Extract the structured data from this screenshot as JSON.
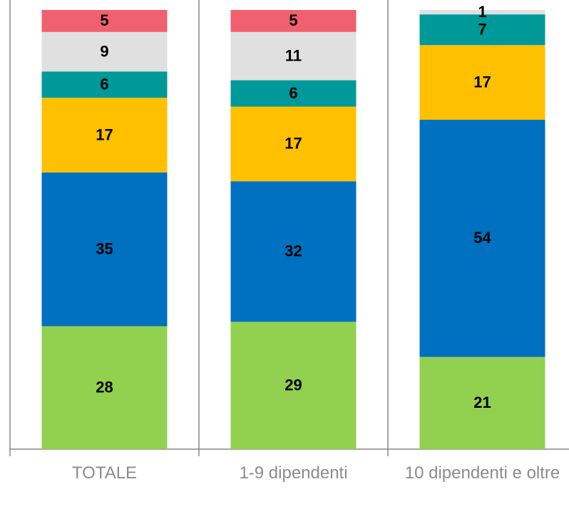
{
  "chart_data": {
    "type": "stacked_bar",
    "categories": [
      "TOTALE",
      "1-9 dipendenti",
      "10 dipendenti e oltre"
    ],
    "series": [
      {
        "color": "#92d050",
        "values": [
          28,
          29,
          21
        ]
      },
      {
        "color": "#0070c0",
        "values": [
          35,
          32,
          54
        ]
      },
      {
        "color": "#ffc000",
        "values": [
          17,
          17,
          17
        ]
      },
      {
        "color": "#009999",
        "values": [
          6,
          6,
          7
        ]
      },
      {
        "color": "#e0e0e0",
        "values": [
          9,
          11,
          1
        ]
      },
      {
        "color": "#f0606e",
        "values": [
          5,
          5,
          null
        ]
      }
    ],
    "ylim": [
      0,
      100
    ]
  }
}
